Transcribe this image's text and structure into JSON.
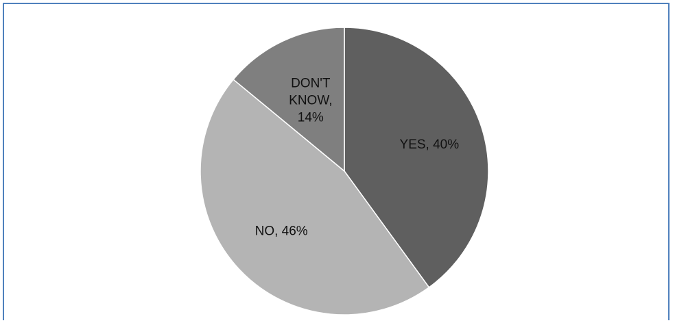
{
  "chart_data": {
    "type": "pie",
    "title": "",
    "slices": [
      {
        "label": "YES",
        "value": 40,
        "color": "#5f5f5f",
        "text_lines": [
          "YES, 40%"
        ]
      },
      {
        "label": "NO",
        "value": 46,
        "color": "#b4b4b4",
        "text_lines": [
          "NO, 46%"
        ]
      },
      {
        "label": "DON'T KNOW",
        "value": 14,
        "color": "#7f7f7f",
        "text_lines": [
          "DON'T",
          "KNOW,",
          "14%"
        ]
      }
    ],
    "start_angle_deg": 0,
    "direction": "clockwise",
    "slice_border_color": "#ffffff",
    "legend": "none",
    "frame_color": "#4f81bd"
  }
}
